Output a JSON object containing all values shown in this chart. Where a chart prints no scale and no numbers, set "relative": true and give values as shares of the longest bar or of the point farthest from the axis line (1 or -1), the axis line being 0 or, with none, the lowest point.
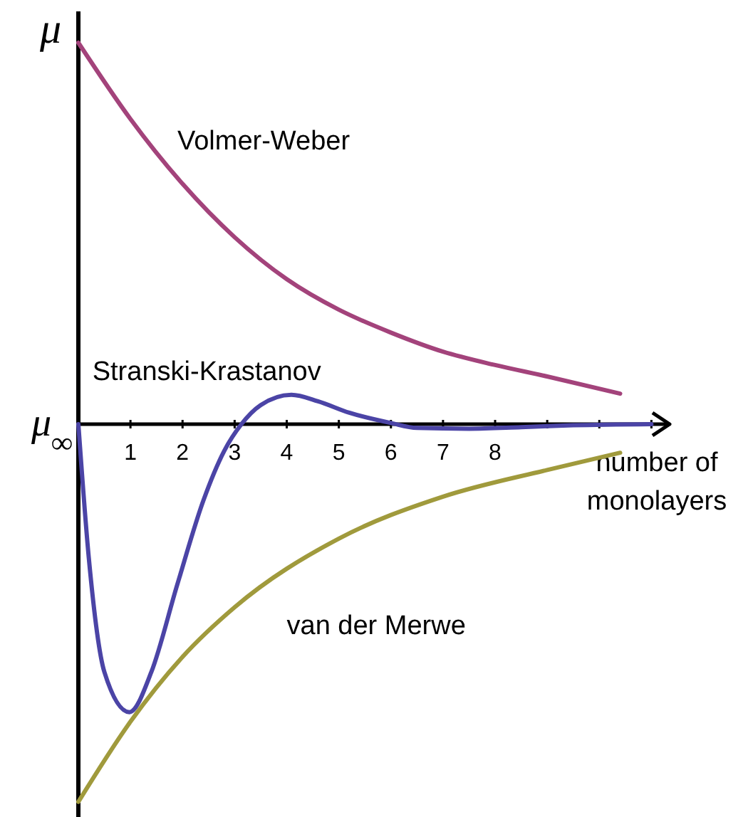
{
  "chart_data": {
    "type": "line",
    "relative": true,
    "ylabel": "μ",
    "xlabel": "number of monolayers",
    "xlim": [
      0,
      11.35
    ],
    "xticks": [
      1,
      2,
      3,
      4,
      5,
      6,
      7,
      8,
      {
        "value": 9,
        "label": null
      },
      {
        "value": 10,
        "label": null
      },
      {
        "value": 11,
        "label": null
      }
    ],
    "legend": false,
    "marker": "none",
    "line_style": "solid",
    "annotations": [
      {
        "text": "μ$_{∞}$",
        "x": 0,
        "y": 0
      }
    ],
    "series": [
      {
        "name": "Volmer-Weber",
        "color": "#a3437b",
        "x": [
          0,
          1,
          2,
          3,
          4,
          5,
          6,
          7,
          8,
          9,
          10.4
        ],
        "values": [
          1,
          0.8,
          0.63,
          0.49,
          0.38,
          0.3,
          0.24,
          0.19,
          0.155,
          0.125,
          0.08
        ]
      },
      {
        "name": "Stranski-Krastanov",
        "color": "#4b44a6",
        "x": [
          0,
          0.2,
          0.5,
          0.98,
          1.4,
          1.9,
          2.4,
          2.8,
          3.13,
          3.5,
          4.09,
          4.6,
          5.2,
          6,
          6.5,
          7.5,
          8.5,
          9.5,
          11
        ],
        "values": [
          0,
          -0.35,
          -0.65,
          -0.755,
          -0.65,
          -0.42,
          -0.2,
          -0.07,
          0,
          0.05,
          0.077,
          0.06,
          0.03,
          0.003,
          -0.01,
          -0.012,
          -0.008,
          -0.003,
          0
        ]
      },
      {
        "name": "van der Merwe",
        "color": "#a09a3c",
        "x": [
          0,
          1,
          2,
          3,
          5,
          7,
          9,
          10.4
        ],
        "values": [
          -0.99,
          -0.78,
          -0.61,
          -0.48,
          -0.3,
          -0.19,
          -0.12,
          -0.075
        ]
      }
    ]
  }
}
